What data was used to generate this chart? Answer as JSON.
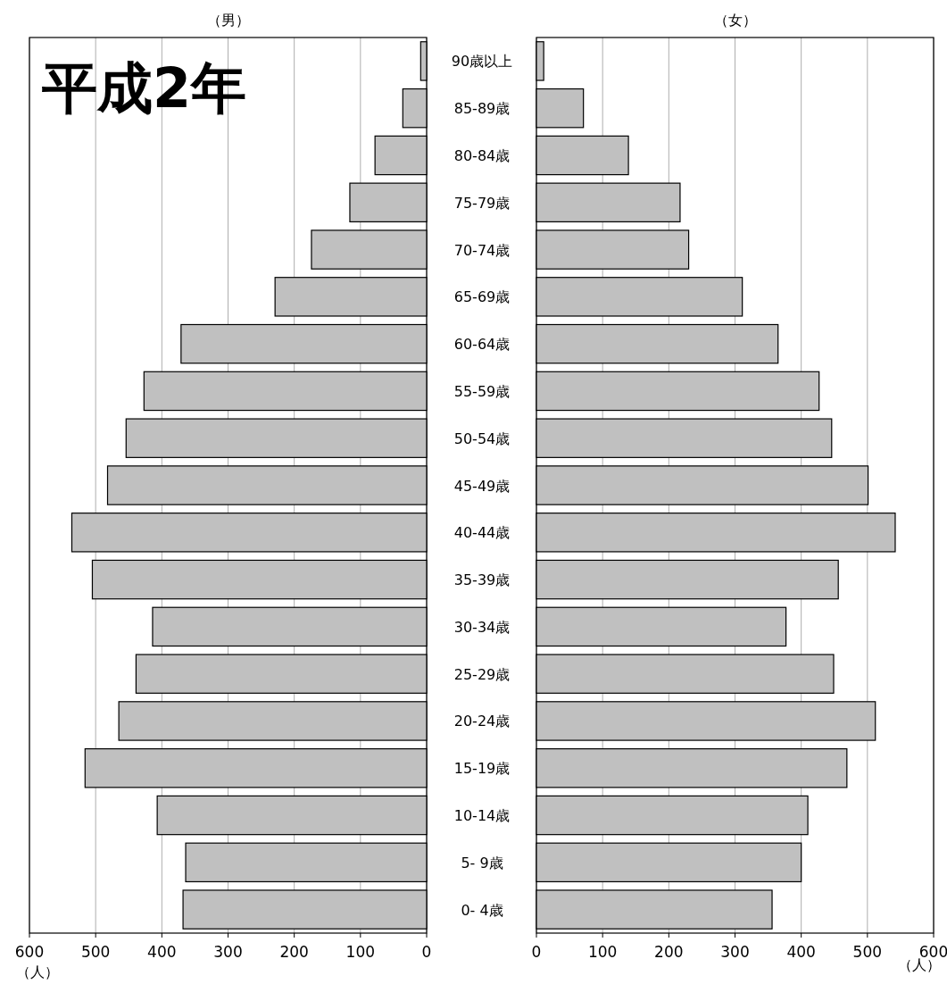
{
  "chart_data": [
    {
      "type": "bar",
      "orientation": "horizontal",
      "title": "（男）",
      "xlabel": "（人）",
      "annotations": [
        "平成2年"
      ],
      "categories": [
        "90歳以上",
        "85-89歳",
        "80-84歳",
        "75-79歳",
        "70-74歳",
        "65-69歳",
        "60-64歳",
        "55-59歳",
        "50-54歳",
        "45-49歳",
        "40-44歳",
        "35-39歳",
        "30-34歳",
        "25-29歳",
        "20-24歳",
        "15-19歳",
        "10-14歳",
        "5- 9歳",
        "0- 4歳"
      ],
      "values": [
        9,
        36,
        78,
        116,
        174,
        229,
        371,
        427,
        454,
        482,
        536,
        505,
        414,
        439,
        465,
        516,
        407,
        364,
        368
      ],
      "color": "#c0c0c0",
      "xlim": [
        600,
        0
      ],
      "xticks": [
        600,
        500,
        400,
        300,
        200,
        100,
        0
      ],
      "grid": "x"
    },
    {
      "type": "bar",
      "orientation": "horizontal",
      "title": "（女）",
      "xlabel": "（人）",
      "categories": [
        null,
        null,
        null,
        null,
        null,
        null,
        null,
        null,
        null,
        null,
        null,
        null,
        null,
        null,
        null,
        null,
        null,
        null,
        null
      ],
      "values": [
        11,
        71,
        139,
        217,
        230,
        311,
        365,
        427,
        446,
        501,
        542,
        456,
        377,
        449,
        512,
        469,
        410,
        400,
        356
      ],
      "color": "#c0c0c0",
      "xlim": [
        0,
        600
      ],
      "xticks": [
        0,
        100,
        200,
        300,
        400,
        500,
        600
      ],
      "grid": "x"
    }
  ]
}
